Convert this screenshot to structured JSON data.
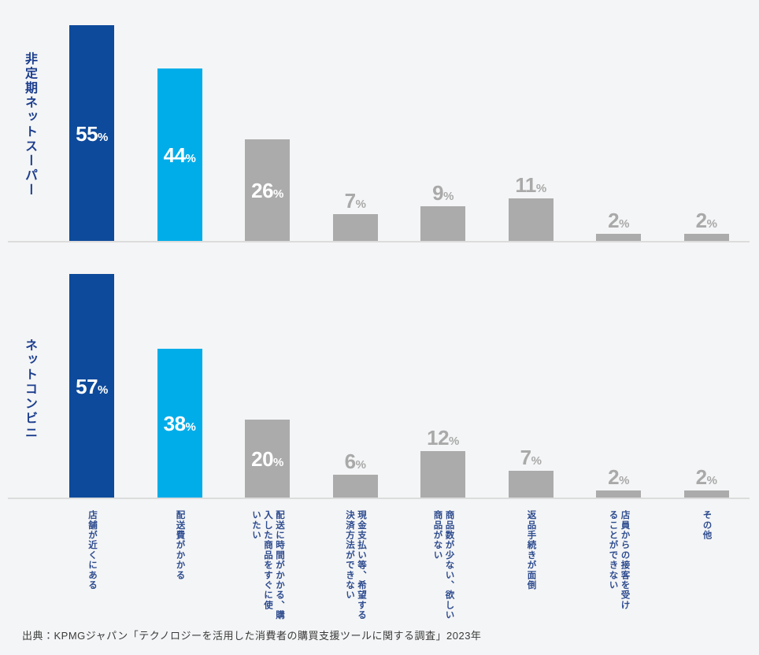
{
  "page": {
    "background_color": "#f4f5f6"
  },
  "colors": {
    "bar_dark_blue": "#0d4a9b",
    "bar_light_blue": "#00ade9",
    "bar_gray": "#ababab",
    "value_label_inside": "#ffffff",
    "value_label_outside": "#a9a9a9",
    "group_title_text": "#1c3e8e",
    "category_label_text": "#2e4c8f",
    "baseline_line": "#dcdcdc",
    "source_text": "#3a3a3a"
  },
  "source_note": "出典：KPMGジャパン「テクノロジーを活用した消費者の購買支援ツールに関する調査」2023年",
  "chart_data": {
    "type": "bar",
    "orientation": "vertical",
    "unit": "%",
    "title": "",
    "xlabel": "",
    "ylabel": "",
    "ylim": [
      0,
      60
    ],
    "grid": false,
    "legend_position": "none",
    "axis_ticks_visible": false,
    "categories": [
      "店舗が近くにある",
      "配送費がかかる",
      "配送に時間がかかる、購入した商品をすぐに使いたい",
      "現金支払い等、希望する決済方法ができない",
      "商品数が少ない、欲しい商品がない",
      "返品手続きが面倒",
      "店員からの接客を受けることができない",
      "その他"
    ],
    "category_label_columns": [
      [
        "店舗が近くにある"
      ],
      [
        "配送費がかかる"
      ],
      [
        "配送に時間がかかる、購",
        "入した商品をすぐに使",
        "いたい"
      ],
      [
        "現金支払い等、希望する",
        "決済方法ができない"
      ],
      [
        "商品数が少ない、欲しい",
        "商品がない"
      ],
      [
        "返品手続きが面倒"
      ],
      [
        "店員からの接客を受け",
        "ることができない"
      ],
      [
        "その他"
      ]
    ],
    "series": [
      {
        "name": "非定期ネットスーパー",
        "values": [
          55,
          44,
          26,
          7,
          9,
          11,
          2,
          2
        ]
      },
      {
        "name": "ネットコンビニ",
        "values": [
          57,
          38,
          20,
          6,
          12,
          7,
          2,
          2
        ]
      }
    ],
    "bar_colors_by_category_index": [
      "#0d4a9b",
      "#00ade9",
      "#ababab",
      "#ababab",
      "#ababab",
      "#ababab",
      "#ababab",
      "#ababab"
    ],
    "value_label_inside_threshold": 20
  }
}
